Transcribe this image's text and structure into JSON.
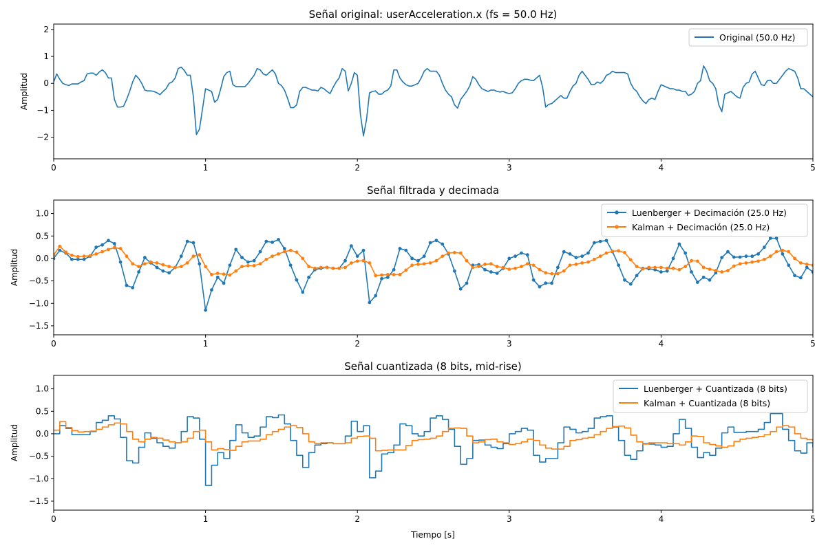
{
  "colors": {
    "blue": "#1f77b4",
    "orange": "#ff7f0e",
    "axis": "#000000",
    "legend_border": "#cccccc"
  },
  "chart_data": [
    {
      "type": "line",
      "title": "Señal original: userAcceleration.x (fs = 50.0 Hz)",
      "xlabel": "",
      "ylabel": "Amplitud",
      "xlim": [
        0,
        5
      ],
      "ylim": [
        -2.8,
        2.2
      ],
      "xticks": [
        0,
        1,
        2,
        3,
        4,
        5
      ],
      "yticks": [
        -2,
        -1,
        0,
        1,
        2
      ],
      "grid": false,
      "legend_position": "top-right",
      "dx": 0.02,
      "series": [
        {
          "name": "Original (50.0 Hz)",
          "color": "#1f77b4",
          "style": "line",
          "values": [
            0.05,
            0.35,
            0.15,
            0.0,
            -0.05,
            -0.08,
            -0.02,
            -0.02,
            -0.02,
            0.05,
            0.1,
            0.35,
            0.38,
            0.38,
            0.3,
            0.42,
            0.5,
            0.4,
            0.2,
            0.2,
            -0.6,
            -0.88,
            -0.88,
            -0.85,
            -0.6,
            -0.3,
            0.05,
            0.3,
            0.18,
            0.0,
            -0.25,
            -0.28,
            -0.28,
            -0.3,
            -0.35,
            -0.42,
            -0.3,
            -0.2,
            0.0,
            0.05,
            0.2,
            0.55,
            0.6,
            0.48,
            0.3,
            0.3,
            -0.5,
            -1.9,
            -1.7,
            -0.95,
            -0.2,
            -0.25,
            -0.3,
            -0.7,
            -0.6,
            -0.2,
            0.25,
            0.4,
            0.45,
            -0.05,
            -0.12,
            -0.12,
            -0.12,
            -0.12,
            0.0,
            0.15,
            0.3,
            0.55,
            0.5,
            0.35,
            0.3,
            0.4,
            0.5,
            0.35,
            0.0,
            -0.08,
            -0.25,
            -0.55,
            -0.9,
            -0.9,
            -0.8,
            -0.3,
            -0.15,
            -0.15,
            -0.2,
            -0.25,
            -0.25,
            -0.28,
            -0.15,
            -0.2,
            -0.3,
            -0.38,
            -0.15,
            0.05,
            0.2,
            0.55,
            0.45,
            -0.28,
            0.0,
            0.4,
            0.3,
            -1.15,
            -1.95,
            -1.35,
            -0.35,
            -0.3,
            -0.28,
            -0.4,
            -0.4,
            -0.3,
            -0.25,
            -0.1,
            0.5,
            0.5,
            0.2,
            0.05,
            -0.05,
            -0.1,
            -0.1,
            -0.05,
            0.0,
            0.2,
            0.45,
            0.55,
            0.45,
            0.45,
            0.45,
            0.3,
            0.0,
            -0.25,
            -0.4,
            -0.5,
            -0.8,
            -0.92,
            -0.6,
            -0.45,
            -0.3,
            -0.1,
            0.25,
            0.15,
            -0.05,
            -0.2,
            -0.25,
            -0.3,
            -0.25,
            -0.25,
            -0.3,
            -0.32,
            -0.3,
            -0.35,
            -0.38,
            -0.35,
            -0.2,
            0.0,
            0.1,
            0.15,
            0.15,
            0.12,
            0.1,
            0.2,
            0.3,
            -0.15,
            -0.88,
            -0.78,
            -0.75,
            -0.65,
            -0.55,
            -0.45,
            -0.55,
            -0.55,
            -0.3,
            -0.1,
            0.0,
            0.3,
            0.45,
            0.3,
            0.15,
            -0.05,
            -0.05,
            0.05,
            0.0,
            0.1,
            0.3,
            0.35,
            0.45,
            0.4,
            0.4,
            0.4,
            0.4,
            0.35,
            0.0,
            -0.2,
            -0.3,
            -0.5,
            -0.65,
            -0.75,
            -0.6,
            -0.55,
            -0.6,
            -0.3,
            -0.05,
            -0.1,
            -0.15,
            -0.2,
            -0.2,
            -0.25,
            -0.25,
            -0.3,
            -0.3,
            -0.45,
            -0.4,
            -0.3,
            0.0,
            0.1,
            0.65,
            0.45,
            0.1,
            0.0,
            -0.2,
            -0.8,
            -1.05,
            -0.4,
            -0.35,
            -0.3,
            -0.4,
            -0.5,
            -0.55,
            -0.15,
            0.0,
            0.05,
            0.35,
            0.45,
            0.2,
            -0.05,
            -0.08,
            0.1,
            0.12,
            0.0,
            0.0,
            0.15,
            0.3,
            0.45,
            0.55,
            0.5,
            0.45,
            0.2,
            -0.2,
            -0.2,
            -0.3,
            -0.4,
            -0.5,
            -0.65,
            -0.6,
            -0.4,
            -0.1,
            -0.1,
            -0.3,
            -0.38,
            -0.38,
            -0.25,
            -0.2
          ]
        }
      ]
    },
    {
      "type": "line",
      "title": "Señal filtrada y decimada",
      "xlabel": "",
      "ylabel": "Amplitud",
      "xlim": [
        0,
        5
      ],
      "ylim": [
        -1.7,
        1.3
      ],
      "xticks": [
        0,
        1,
        2,
        3,
        4,
        5
      ],
      "yticks": [
        -1.5,
        -1.0,
        -0.5,
        0.0,
        0.5,
        1.0
      ],
      "grid": false,
      "legend_position": "top-right",
      "dx": 0.04,
      "series": [
        {
          "name": "Luenberger + Decimación (25.0 Hz)",
          "color": "#1f77b4",
          "style": "line-marker",
          "values": [
            0.0,
            0.18,
            0.12,
            -0.02,
            -0.02,
            -0.02,
            0.05,
            0.25,
            0.3,
            0.4,
            0.33,
            -0.08,
            -0.6,
            -0.65,
            -0.3,
            0.02,
            -0.1,
            -0.2,
            -0.28,
            -0.32,
            -0.2,
            0.05,
            0.38,
            0.35,
            -0.12,
            -1.15,
            -0.7,
            -0.42,
            -0.55,
            -0.15,
            0.2,
            0.02,
            -0.08,
            -0.05,
            0.15,
            0.38,
            0.36,
            0.42,
            0.22,
            -0.15,
            -0.48,
            -0.75,
            -0.42,
            -0.25,
            -0.22,
            -0.2,
            -0.22,
            -0.22,
            -0.05,
            0.28,
            0.05,
            0.18,
            -0.98,
            -0.83,
            -0.45,
            -0.42,
            -0.25,
            0.22,
            0.18,
            0.0,
            -0.05,
            0.05,
            0.35,
            0.4,
            0.32,
            0.1,
            -0.28,
            -0.68,
            -0.55,
            -0.15,
            -0.14,
            -0.25,
            -0.3,
            -0.33,
            -0.22,
            0.0,
            0.05,
            0.12,
            0.08,
            -0.48,
            -0.63,
            -0.55,
            -0.55,
            -0.2,
            0.15,
            0.1,
            0.02,
            0.05,
            0.12,
            0.35,
            0.38,
            0.4,
            0.15,
            -0.15,
            -0.48,
            -0.57,
            -0.38,
            -0.22,
            -0.23,
            -0.25,
            -0.3,
            -0.28,
            0.0,
            0.32,
            0.12,
            -0.3,
            -0.53,
            -0.42,
            -0.48,
            -0.32,
            0.02,
            0.15,
            0.03,
            0.03,
            0.05,
            0.05,
            0.1,
            0.25,
            0.45,
            0.45,
            0.1,
            -0.15,
            -0.38,
            -0.43,
            -0.2,
            -0.3,
            -0.28
          ]
        },
        {
          "name": "Kalman + Decimación (25.0 Hz)",
          "color": "#ff7f0e",
          "style": "line-marker",
          "values": [
            0.08,
            0.27,
            0.14,
            0.07,
            0.04,
            0.05,
            0.06,
            0.1,
            0.15,
            0.2,
            0.24,
            0.22,
            0.05,
            -0.12,
            -0.18,
            -0.12,
            -0.08,
            -0.1,
            -0.14,
            -0.18,
            -0.2,
            -0.18,
            -0.1,
            0.05,
            0.08,
            -0.18,
            -0.36,
            -0.33,
            -0.35,
            -0.37,
            -0.28,
            -0.18,
            -0.16,
            -0.16,
            -0.12,
            -0.02,
            0.05,
            0.1,
            0.15,
            0.18,
            0.14,
            0.0,
            -0.18,
            -0.22,
            -0.2,
            -0.2,
            -0.22,
            -0.22,
            -0.2,
            -0.1,
            -0.06,
            -0.05,
            -0.1,
            -0.38,
            -0.37,
            -0.36,
            -0.36,
            -0.36,
            -0.26,
            -0.15,
            -0.13,
            -0.12,
            -0.1,
            -0.05,
            0.05,
            0.12,
            0.13,
            0.12,
            -0.05,
            -0.2,
            -0.18,
            -0.13,
            -0.12,
            -0.18,
            -0.2,
            -0.24,
            -0.22,
            -0.18,
            -0.12,
            -0.15,
            -0.25,
            -0.32,
            -0.34,
            -0.34,
            -0.28,
            -0.15,
            -0.13,
            -0.1,
            -0.08,
            -0.02,
            0.05,
            0.12,
            0.16,
            0.17,
            0.13,
            -0.03,
            -0.18,
            -0.23,
            -0.2,
            -0.2,
            -0.2,
            -0.22,
            -0.22,
            -0.25,
            -0.18,
            -0.05,
            -0.06,
            -0.2,
            -0.24,
            -0.27,
            -0.3,
            -0.27,
            -0.17,
            -0.12,
            -0.1,
            -0.08,
            -0.06,
            -0.02,
            0.05,
            0.15,
            0.18,
            0.15,
            0.0,
            -0.1,
            -0.13,
            -0.15,
            -0.17,
            -0.19
          ]
        }
      ]
    },
    {
      "type": "line",
      "title": "Señal cuantizada (8 bits, mid-rise)",
      "xlabel": "Tiempo [s]",
      "ylabel": "Amplitud",
      "xlim": [
        0,
        5
      ],
      "ylim": [
        -1.7,
        1.3
      ],
      "xticks": [
        0,
        1,
        2,
        3,
        4,
        5
      ],
      "yticks": [
        -1.5,
        -1.0,
        -0.5,
        0.0,
        0.5,
        1.0
      ],
      "grid": false,
      "legend_position": "top-right",
      "dx": 0.04,
      "step": true,
      "series": [
        {
          "name": "Luenberger + Cuantizada (8 bits)",
          "color": "#1f77b4",
          "style": "step",
          "source_series": 0
        },
        {
          "name": "Kalman + Cuantizada (8 bits)",
          "color": "#ff7f0e",
          "style": "step",
          "source_series": 1
        }
      ]
    }
  ]
}
